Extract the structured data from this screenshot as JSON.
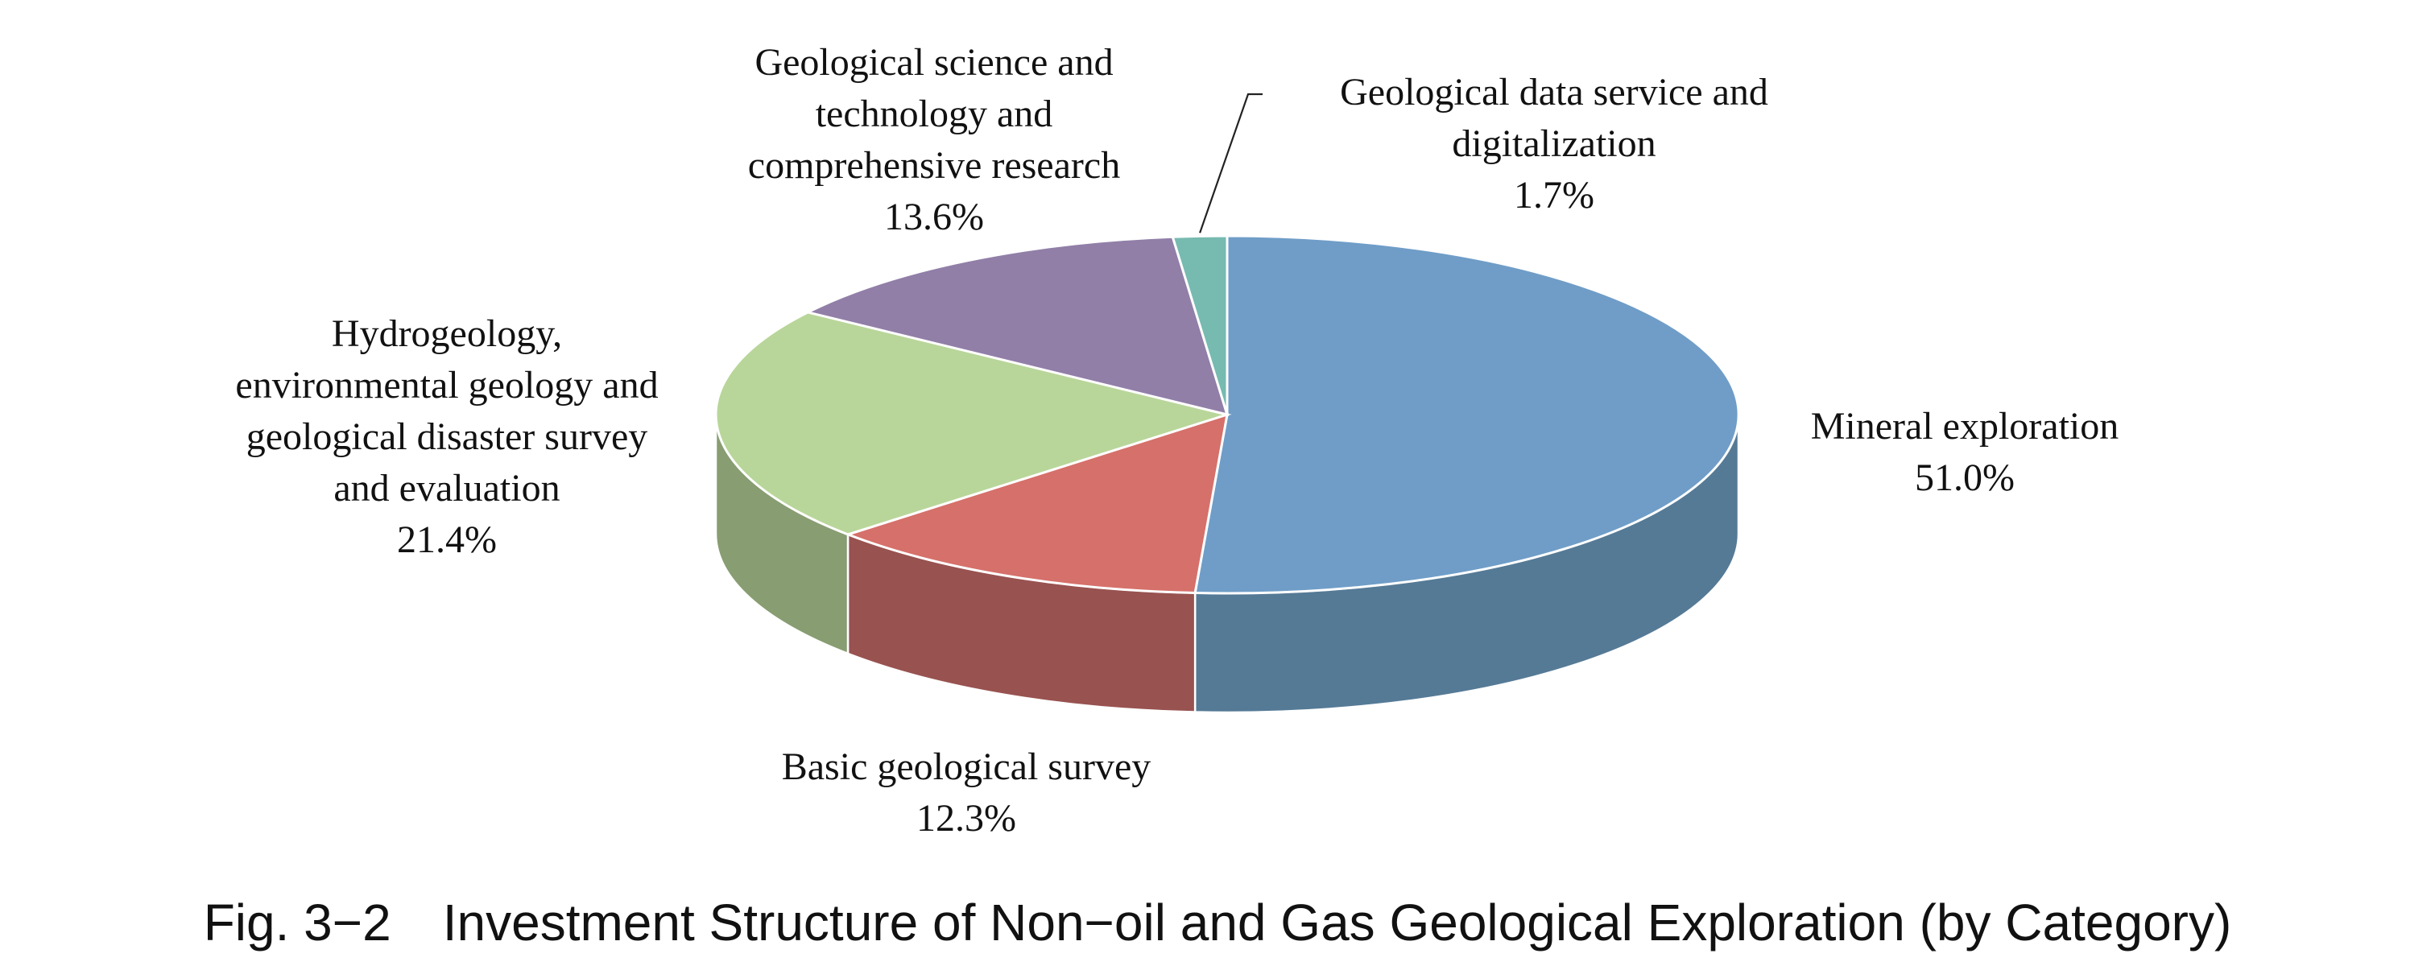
{
  "caption": "Fig. 3−2 Investment Structure of Non−oil and Gas Geological Exploration (by Category)",
  "chart_data": {
    "type": "pie",
    "style": "3d",
    "start_angle_deg": -90,
    "direction": "clockwise",
    "slices": [
      {
        "label": [
          "Mineral exploration"
        ],
        "value_text": "51.0%",
        "value": 51.0,
        "color": "#6f9dc7",
        "side_color": "#557a96"
      },
      {
        "label": [
          "Basic geological survey"
        ],
        "value_text": "12.3%",
        "value": 12.3,
        "color": "#d6706a",
        "side_color": "#985250"
      },
      {
        "label": [
          "Hydrogeology,",
          "environmental geology and",
          "geological disaster survey",
          "and evaluation"
        ],
        "value_text": "21.4%",
        "value": 21.4,
        "color": "#b9d69a",
        "side_color": "#889d72"
      },
      {
        "label": [
          "Geological science and",
          "technology and",
          "comprehensive research"
        ],
        "value_text": "13.6%",
        "value": 13.6,
        "color": "#917fa8",
        "side_color": "#6e607f"
      },
      {
        "label": [
          "Geological data service and",
          "digitalization"
        ],
        "value_text": "1.7%",
        "value": 1.7,
        "color": "#77bab0",
        "side_color": "#5a8d86"
      }
    ]
  }
}
